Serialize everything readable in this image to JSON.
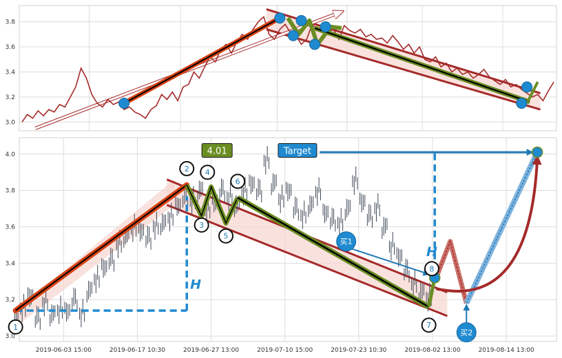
{
  "chart_data": [
    {
      "type": "line",
      "panel": "top",
      "title": "",
      "xlabel": "",
      "ylabel": "",
      "ylim": [
        2.93,
        3.93
      ],
      "xlim": [
        0,
        100
      ],
      "grid": true,
      "yticks": [
        3.0,
        3.2,
        3.4,
        3.6,
        3.8
      ],
      "ytick_labels": [
        "3.0",
        "3.2",
        "3.4",
        "3.6",
        "3.8"
      ],
      "series": [
        {
          "key": "price",
          "color": "#a52a2a",
          "x": [
            0.5,
            1.5,
            2.5,
            3.5,
            4.5,
            5.5,
            6.5,
            7.5,
            8.5,
            9.5,
            10.5,
            11.5,
            12.5,
            13.5,
            14.5,
            15.5,
            16.5,
            17.5,
            18.5,
            19.5,
            20.5,
            21.5,
            22.5,
            23.5,
            24.5,
            25.5,
            26.5,
            27.5,
            28.5,
            29.5,
            30.5,
            31.5,
            32.5,
            33.5,
            34.5,
            35.5,
            36.5,
            37.5,
            38.5,
            39.5,
            40.5,
            41.5,
            42.5,
            43.5,
            44.5,
            45.5,
            46.5,
            47.5,
            48.5,
            49.5,
            50.5,
            51.5,
            52.5,
            53.5,
            54.5,
            55.5,
            56.5,
            57.5,
            58.5,
            59.5,
            60.5,
            61.5,
            62.5,
            63.5,
            64.5,
            65.5,
            66.5,
            67.5,
            68.5,
            69.5,
            70.5,
            71.5,
            72.5,
            73.5,
            74.5,
            75.5,
            76.5,
            77.5,
            78.5,
            79.5,
            80.5,
            81.5,
            82.5,
            83.5,
            84.5,
            85.5,
            86.5,
            87.5,
            88.5,
            89.5,
            90.5,
            91.5,
            92.5,
            93.5,
            94.5,
            95.5,
            96.5,
            97.5,
            98.5,
            99.5
          ],
          "y": [
            3.0,
            3.06,
            3.03,
            3.09,
            3.05,
            3.1,
            3.08,
            3.14,
            3.12,
            3.2,
            3.28,
            3.43,
            3.35,
            3.22,
            3.15,
            3.12,
            3.18,
            3.14,
            3.16,
            3.1,
            3.12,
            3.08,
            3.06,
            3.03,
            3.1,
            3.13,
            3.22,
            3.18,
            3.24,
            3.17,
            3.28,
            3.3,
            3.4,
            3.35,
            3.44,
            3.52,
            3.48,
            3.58,
            3.62,
            3.55,
            3.64,
            3.7,
            3.66,
            3.74,
            3.8,
            3.84,
            3.7,
            3.66,
            3.74,
            3.78,
            3.71,
            3.69,
            3.62,
            3.66,
            3.78,
            3.74,
            3.76,
            3.72,
            3.74,
            3.66,
            3.77,
            3.73,
            3.71,
            3.74,
            3.68,
            3.7,
            3.66,
            3.67,
            3.63,
            3.69,
            3.64,
            3.58,
            3.62,
            3.55,
            3.6,
            3.5,
            3.48,
            3.52,
            3.44,
            3.47,
            3.4,
            3.43,
            3.38,
            3.4,
            3.35,
            3.38,
            3.42,
            3.36,
            3.33,
            3.3,
            3.34,
            3.28,
            3.3,
            3.26,
            3.23,
            3.2,
            3.22,
            3.17,
            3.25,
            3.32
          ]
        },
        {
          "key": "zigzag",
          "color": "#6b8e23",
          "x": [
            50,
            52,
            54,
            55.5,
            58,
            60,
            94.5,
            96.5
          ],
          "y": [
            3.83,
            3.7,
            3.81,
            3.62,
            3.76,
            3.75,
            3.15,
            3.32
          ]
        },
        {
          "key": "up-leg",
          "color": "#d84315",
          "x": [
            19.5,
            48.5
          ],
          "y": [
            3.15,
            3.83
          ]
        },
        {
          "key": "down-trend",
          "color": "#000000",
          "x": [
            55,
            95
          ],
          "y": [
            3.75,
            3.16
          ]
        }
      ],
      "channel": {
        "upper": [
          [
            46,
            3.9
          ],
          [
            97,
            3.23
          ]
        ],
        "lower": [
          [
            46,
            3.74
          ],
          [
            97,
            3.1
          ]
        ]
      },
      "projection_arrow": {
        "from": [
          3,
          2.95
        ],
        "to": [
          60,
          3.88
        ]
      },
      "markers": [
        [
          19.5,
          3.15
        ],
        [
          48.5,
          3.83
        ],
        [
          51,
          3.69
        ],
        [
          52.5,
          3.81
        ],
        [
          55,
          3.62
        ],
        [
          57,
          3.76
        ],
        [
          93.5,
          3.15
        ],
        [
          94.5,
          3.28
        ]
      ]
    },
    {
      "type": "line",
      "panel": "bottom",
      "title": "",
      "xlabel": "",
      "ylabel": "",
      "ylim": [
        2.97,
        4.09
      ],
      "grid": true,
      "yticks": [
        3.0,
        3.2,
        3.4,
        3.6,
        3.8,
        4.0
      ],
      "ytick_labels": [
        "3.0",
        "3.2",
        "3.4",
        "3.6",
        "3.8",
        "4.0"
      ],
      "xtick_labels": [
        "2019-06-03 15:00",
        "2019-06-17 10:30",
        "2019-06-27 13:00",
        "2019-07-10 15:00",
        "2019-07-23 10:30",
        "2019-08-02 13:00",
        "2019-08-14 13:00"
      ],
      "xtick_index": [
        1,
        2,
        3,
        4,
        5,
        6,
        7
      ],
      "xlim": [
        0.4,
        7.68
      ],
      "price_line": {
        "color": "#3c4654",
        "x": [
          0.35,
          0.45,
          0.55,
          0.65,
          0.75,
          0.85,
          0.95,
          1.05,
          1.15,
          1.25,
          1.35,
          1.45,
          1.55,
          1.65,
          1.75,
          1.85,
          1.95,
          2.05,
          2.15,
          2.25,
          2.35,
          2.45,
          2.55,
          2.65,
          2.75,
          2.85,
          2.95,
          3.05,
          3.15,
          3.25,
          3.35,
          3.45,
          3.55,
          3.65,
          3.75,
          3.85,
          3.95,
          4.05,
          4.15,
          4.25,
          4.35,
          4.45,
          4.55,
          4.65,
          4.75,
          4.85,
          4.95,
          5.05,
          5.15,
          5.25,
          5.35,
          5.45,
          5.55,
          5.65,
          5.75,
          5.85,
          5.95
        ],
        "y": [
          3.08,
          3.16,
          3.22,
          3.1,
          3.18,
          3.12,
          3.15,
          3.14,
          3.2,
          3.12,
          3.25,
          3.32,
          3.38,
          3.42,
          3.5,
          3.55,
          3.6,
          3.58,
          3.54,
          3.6,
          3.62,
          3.66,
          3.72,
          3.76,
          3.74,
          3.8,
          3.7,
          3.74,
          3.8,
          3.76,
          3.72,
          3.8,
          3.84,
          3.8,
          3.96,
          3.84,
          3.76,
          3.8,
          3.7,
          3.66,
          3.72,
          3.8,
          3.68,
          3.64,
          3.62,
          3.7,
          3.86,
          3.74,
          3.66,
          3.7,
          3.6,
          3.5,
          3.44,
          3.36,
          3.28,
          3.24,
          3.22
        ],
        "wick_high_offset": 0.06,
        "wick_low_offset": 0.06
      },
      "series": [
        {
          "key": "up-leg",
          "color": "#d84315",
          "x": [
            0.35,
            2.67
          ],
          "y": [
            3.14,
            3.83
          ]
        },
        {
          "key": "zigzag",
          "color": "#6b8e23",
          "x": [
            2.67,
            2.87,
            3.0,
            3.2,
            3.36,
            5.95,
            6.03
          ],
          "y": [
            3.83,
            3.66,
            3.82,
            3.62,
            3.76,
            3.16,
            3.32
          ]
        },
        {
          "key": "down-trend",
          "color": "#000000",
          "x": [
            3.36,
            5.95
          ],
          "y": [
            3.76,
            3.16
          ]
        },
        {
          "key": "projection-dashed",
          "color": "#a52a2a",
          "x": [
            6.03,
            6.24,
            6.46
          ],
          "y": [
            3.3,
            3.52,
            3.18
          ]
        },
        {
          "key": "target-leg",
          "color": "#1f78b4",
          "x": [
            6.46,
            7.42
          ],
          "y": [
            3.18,
            4.01
          ]
        }
      ],
      "channel": {
        "upper": [
          [
            2.4,
            3.86
          ],
          [
            6.2,
            3.24
          ]
        ],
        "lower": [
          [
            2.4,
            3.72
          ],
          [
            6.2,
            3.11
          ]
        ]
      },
      "up_channel_fill": {
        "upper": [
          [
            2.4,
            3.77
          ],
          [
            0.3,
            3.13
          ]
        ],
        "lower": [
          [
            0.3,
            3.13
          ],
          [
            2.4,
            3.86
          ]
        ]
      },
      "reference_lines": {
        "h_base": {
          "x": [
            0.35,
            2.67
          ],
          "y": 3.14
        },
        "h_vertical": {
          "x": 2.67,
          "y": [
            3.14,
            3.77
          ]
        },
        "target_vertical": {
          "x": 6.03,
          "y": [
            3.3,
            4.01
          ]
        },
        "target_arrow": {
          "from": [
            4.47,
            4.01
          ],
          "to": [
            7.35,
            4.01
          ]
        }
      },
      "buy1_arrow": {
        "from": [
          4.9,
          3.48
        ],
        "to": [
          5.95,
          3.34
        ]
      },
      "buy2_arrow": {
        "from": [
          6.46,
          3.03
        ],
        "to": [
          6.46,
          3.17
        ]
      },
      "curve_arrow": {
        "from": [
          6.05,
          3.26
        ],
        "to": [
          7.42,
          3.98
        ]
      },
      "wave_points": [
        {
          "label": "1",
          "x": 0.35,
          "y": 3.05
        },
        {
          "label": "2",
          "x": 2.67,
          "y": 3.92
        },
        {
          "label": "3",
          "x": 2.87,
          "y": 3.61
        },
        {
          "label": "4",
          "x": 2.95,
          "y": 3.9
        },
        {
          "label": "5",
          "x": 3.2,
          "y": 3.55
        },
        {
          "label": "6",
          "x": 3.36,
          "y": 3.85
        },
        {
          "label": "7",
          "x": 5.95,
          "y": 3.06
        },
        {
          "label": "8",
          "x": 5.99,
          "y": 3.37
        }
      ],
      "markers": [
        [
          6.03,
          3.32
        ],
        [
          7.42,
          4.01
        ]
      ],
      "annotations": [
        {
          "key": "price",
          "text": "4.01",
          "x": 3.08,
          "y": 4.02,
          "bg": "#6b8e23"
        },
        {
          "key": "target",
          "text": "Target",
          "x": 4.17,
          "y": 4.02,
          "bg": "#1f8ad0"
        },
        {
          "key": "buy1",
          "text": "买1",
          "x": 4.83,
          "y": 3.52,
          "bg": "#1f8ad0"
        },
        {
          "key": "buy2",
          "text": "买2",
          "x": 6.46,
          "y": 3.02,
          "bg": "#1f8ad0"
        },
        {
          "key": "h1",
          "text": "H",
          "x": 2.79,
          "y": 3.26
        },
        {
          "key": "h2",
          "text": "H",
          "x": 5.99,
          "y": 3.44
        }
      ]
    }
  ]
}
